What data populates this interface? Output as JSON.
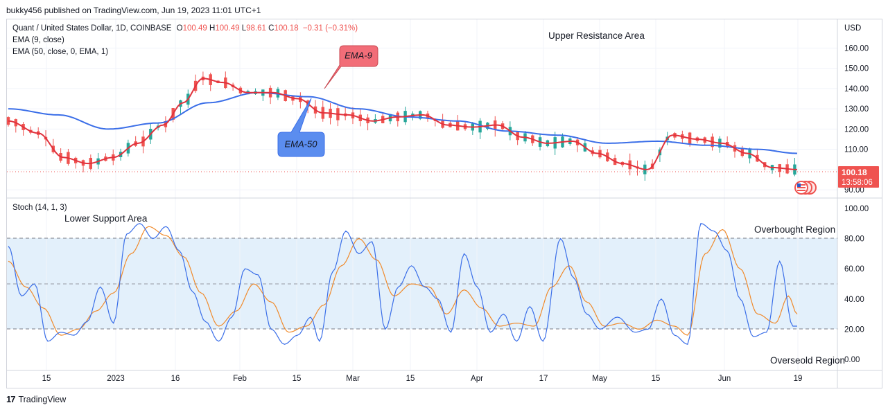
{
  "header": {
    "publish_line": "bukky456 published on TradingView.com, Jun 19, 2023 11:01 UTC+1"
  },
  "legend": {
    "symbol_title": "Quant / United States Dollar, 1D, COINBASE",
    "ohlc": {
      "o_label": "O",
      "o": "100.49",
      "h_label": "H",
      "h": "100.49",
      "l_label": "L",
      "l": "98.61",
      "c_label": "C",
      "c": "100.18",
      "change": "−0.31 (−0.31%)"
    },
    "ema9": "EMA (9, close)",
    "ema50": "EMA (50, close, 0, EMA, 1)",
    "stoch": "Stoch (14, 1, 3)"
  },
  "annotations": {
    "upper_resistance": "Upper Resistance Area",
    "lower_support": "Lower Support Area",
    "overbought": "Overbought Region",
    "oversold": "Overseold Region",
    "ema9_callout": "EMA-9",
    "ema50_callout": "EMA-50"
  },
  "price_axis": {
    "currency": "USD",
    "ticks": [
      "160.00",
      "150.00",
      "140.00",
      "130.00",
      "120.00",
      "110.00",
      "90.00"
    ],
    "last_price": "100.18",
    "countdown": "13:58:06"
  },
  "stoch_axis": {
    "ticks": [
      "100.00",
      "80.00",
      "60.00",
      "40.00",
      "20.00",
      "0.00"
    ]
  },
  "time_axis": {
    "ticks": [
      "15",
      "2023",
      "16",
      "Feb",
      "15",
      "Mar",
      "15",
      "Apr",
      "17",
      "May",
      "15",
      "Jun",
      "19"
    ]
  },
  "footer": {
    "brand": "TradingView",
    "logo": "17"
  },
  "colors": {
    "up_candle": "#26a69a",
    "down_candle": "#ef5350",
    "ema9": "#e0313c",
    "ema50": "#3a6ee8",
    "stoch_k": "#3a6ee8",
    "stoch_d": "#f08a2b",
    "stoch_band": "#e3f0fb",
    "callout_ema9": "#f26d78",
    "callout_ema50": "#5b8def",
    "price_badge": "#ef5350"
  },
  "chart_data": {
    "type": "candlestick",
    "price_ylim": [
      88,
      168
    ],
    "stoch_ylim": [
      0,
      100
    ],
    "last_close": 100.18,
    "ema9_anchors": [
      [
        0,
        124
      ],
      [
        12,
        118
      ],
      [
        22,
        106
      ],
      [
        32,
        103
      ],
      [
        42,
        106
      ],
      [
        52,
        113
      ],
      [
        62,
        122
      ],
      [
        70,
        133
      ],
      [
        78,
        145
      ],
      [
        86,
        143
      ],
      [
        96,
        138
      ],
      [
        106,
        138
      ],
      [
        116,
        135
      ],
      [
        126,
        128
      ],
      [
        136,
        127
      ],
      [
        146,
        124
      ],
      [
        156,
        126
      ],
      [
        166,
        127
      ],
      [
        176,
        122
      ],
      [
        186,
        121
      ],
      [
        196,
        122
      ],
      [
        206,
        116
      ],
      [
        216,
        113
      ],
      [
        226,
        114
      ],
      [
        236,
        108
      ],
      [
        246,
        103
      ],
      [
        256,
        100
      ],
      [
        266,
        117
      ],
      [
        276,
        115
      ],
      [
        286,
        113
      ],
      [
        296,
        108
      ],
      [
        306,
        101
      ],
      [
        316,
        100
      ]
    ],
    "ema50_anchors": [
      [
        0,
        130
      ],
      [
        20,
        127
      ],
      [
        40,
        120
      ],
      [
        60,
        123
      ],
      [
        80,
        133
      ],
      [
        100,
        138
      ],
      [
        120,
        136
      ],
      [
        140,
        130
      ],
      [
        160,
        126
      ],
      [
        180,
        124
      ],
      [
        200,
        119
      ],
      [
        220,
        117
      ],
      [
        240,
        113
      ],
      [
        260,
        114
      ],
      [
        280,
        112
      ],
      [
        300,
        110
      ],
      [
        316,
        108
      ]
    ],
    "stoch_k_anchors": [
      [
        0,
        75
      ],
      [
        6,
        42
      ],
      [
        12,
        50
      ],
      [
        18,
        12
      ],
      [
        24,
        18
      ],
      [
        30,
        16
      ],
      [
        36,
        25
      ],
      [
        42,
        48
      ],
      [
        48,
        24
      ],
      [
        54,
        83
      ],
      [
        60,
        90
      ],
      [
        66,
        80
      ],
      [
        72,
        88
      ],
      [
        78,
        72
      ],
      [
        84,
        45
      ],
      [
        90,
        25
      ],
      [
        96,
        12
      ],
      [
        102,
        28
      ],
      [
        108,
        60
      ],
      [
        114,
        56
      ],
      [
        120,
        20
      ],
      [
        126,
        10
      ],
      [
        132,
        16
      ],
      [
        138,
        28
      ],
      [
        142,
        12
      ],
      [
        148,
        58
      ],
      [
        154,
        85
      ],
      [
        160,
        70
      ],
      [
        166,
        78
      ],
      [
        172,
        20
      ],
      [
        178,
        48
      ],
      [
        184,
        62
      ],
      [
        190,
        48
      ],
      [
        196,
        40
      ],
      [
        202,
        18
      ],
      [
        208,
        70
      ],
      [
        214,
        48
      ],
      [
        220,
        18
      ],
      [
        226,
        30
      ],
      [
        232,
        12
      ],
      [
        238,
        35
      ],
      [
        244,
        12
      ],
      [
        252,
        80
      ],
      [
        258,
        54
      ],
      [
        264,
        30
      ],
      [
        270,
        20
      ],
      [
        278,
        28
      ],
      [
        286,
        18
      ],
      [
        292,
        20
      ],
      [
        298,
        40
      ],
      [
        304,
        16
      ],
      [
        310,
        10
      ],
      [
        316,
        90
      ],
      [
        322,
        85
      ],
      [
        328,
        72
      ],
      [
        334,
        40
      ],
      [
        340,
        15
      ],
      [
        346,
        18
      ],
      [
        352,
        65
      ],
      [
        358,
        22
      ]
    ],
    "stoch_d_anchors": [
      [
        0,
        65
      ],
      [
        8,
        48
      ],
      [
        16,
        34
      ],
      [
        24,
        16
      ],
      [
        32,
        20
      ],
      [
        40,
        32
      ],
      [
        48,
        44
      ],
      [
        56,
        70
      ],
      [
        64,
        88
      ],
      [
        72,
        82
      ],
      [
        80,
        68
      ],
      [
        88,
        44
      ],
      [
        96,
        22
      ],
      [
        104,
        32
      ],
      [
        112,
        50
      ],
      [
        120,
        38
      ],
      [
        128,
        18
      ],
      [
        136,
        22
      ],
      [
        144,
        36
      ],
      [
        152,
        62
      ],
      [
        160,
        80
      ],
      [
        168,
        66
      ],
      [
        176,
        42
      ],
      [
        184,
        50
      ],
      [
        192,
        48
      ],
      [
        200,
        30
      ],
      [
        208,
        46
      ],
      [
        216,
        34
      ],
      [
        224,
        22
      ],
      [
        232,
        24
      ],
      [
        240,
        22
      ],
      [
        248,
        48
      ],
      [
        256,
        62
      ],
      [
        264,
        38
      ],
      [
        272,
        22
      ],
      [
        280,
        24
      ],
      [
        288,
        20
      ],
      [
        296,
        26
      ],
      [
        304,
        22
      ],
      [
        310,
        16
      ],
      [
        318,
        70
      ],
      [
        326,
        86
      ],
      [
        334,
        60
      ],
      [
        342,
        30
      ],
      [
        350,
        24
      ],
      [
        356,
        42
      ],
      [
        360,
        30
      ]
    ]
  }
}
